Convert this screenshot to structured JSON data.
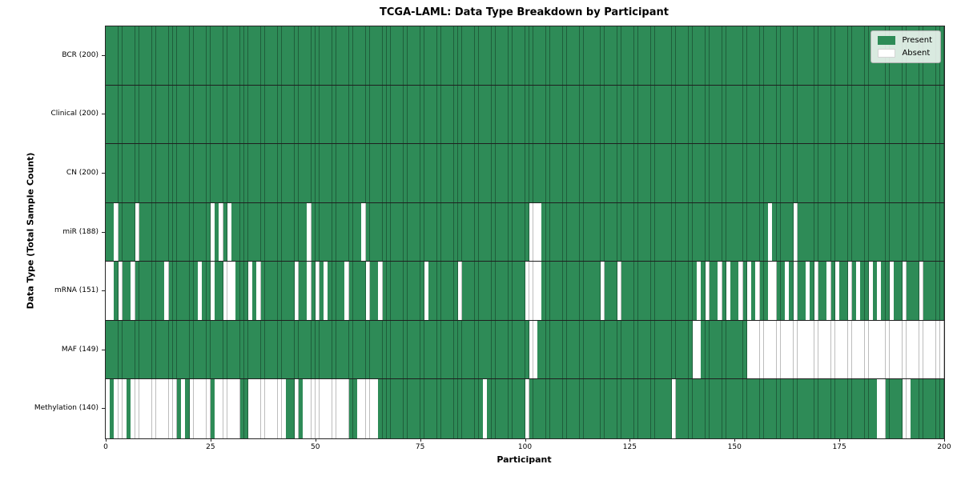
{
  "title": "TCGA-LAML: Data Type Breakdown by Participant",
  "x_axis_label": "Participant",
  "y_axis_label": "Data Type (Total Sample Count)",
  "legend": {
    "present_label": "Present",
    "absent_label": "Absent"
  },
  "colors": {
    "present": "#2e8b57",
    "absent": "#ffffff",
    "grid_line": "rgba(0,0,0,0.32)"
  },
  "chart_data": {
    "type": "heatmap",
    "title": "TCGA-LAML: Data Type Breakdown by Participant",
    "xlabel": "Participant",
    "ylabel": "Data Type (Total Sample Count)",
    "x_range": [
      0,
      200
    ],
    "n_participants": 200,
    "x_ticks": [
      0,
      25,
      50,
      75,
      100,
      125,
      150,
      175,
      200
    ],
    "legend_entries": [
      "Present",
      "Absent"
    ],
    "legend_position": "upper right",
    "rows": [
      {
        "label": "BCR (200)",
        "total": 200,
        "absent_participants": []
      },
      {
        "label": "Clinical (200)",
        "total": 200,
        "absent_participants": []
      },
      {
        "label": "CN (200)",
        "total": 200,
        "absent_participants": []
      },
      {
        "label": "miR (188)",
        "total": 188,
        "absent_participants": [
          2,
          7,
          25,
          27,
          29,
          48,
          61,
          101,
          102,
          103,
          158,
          164
        ]
      },
      {
        "label": "mRNA (151)",
        "total": 151,
        "absent_participants": [
          0,
          1,
          3,
          6,
          14,
          22,
          25,
          28,
          29,
          30,
          34,
          36,
          45,
          48,
          50,
          52,
          57,
          62,
          65,
          76,
          84,
          100,
          101,
          102,
          103,
          118,
          122,
          141,
          143,
          146,
          148,
          151,
          153,
          155,
          158,
          159,
          162,
          164,
          167,
          169,
          172,
          174,
          177,
          179,
          182,
          184,
          187,
          190,
          194
        ]
      },
      {
        "label": "MAF (149)",
        "total": 149,
        "absent_participants": [
          101,
          102,
          140,
          141,
          153,
          154,
          155,
          156,
          157,
          158,
          159,
          160,
          161,
          162,
          163,
          164,
          165,
          166,
          167,
          168,
          169,
          170,
          171,
          172,
          173,
          174,
          175,
          176,
          177,
          178,
          179,
          180,
          181,
          182,
          183,
          184,
          185,
          186,
          187,
          188,
          189,
          190,
          191,
          192,
          193,
          194,
          195,
          196,
          197,
          198,
          199
        ]
      },
      {
        "label": "Methylation (140)",
        "total": 140,
        "absent_participants": [
          0,
          2,
          3,
          4,
          6,
          7,
          8,
          9,
          10,
          11,
          12,
          13,
          14,
          15,
          16,
          18,
          20,
          21,
          22,
          23,
          24,
          26,
          27,
          28,
          29,
          30,
          31,
          34,
          35,
          36,
          37,
          38,
          39,
          40,
          41,
          42,
          45,
          47,
          48,
          49,
          50,
          51,
          52,
          53,
          54,
          55,
          56,
          57,
          60,
          61,
          62,
          63,
          64,
          90,
          100,
          135,
          184,
          185,
          190,
          191
        ]
      }
    ]
  }
}
